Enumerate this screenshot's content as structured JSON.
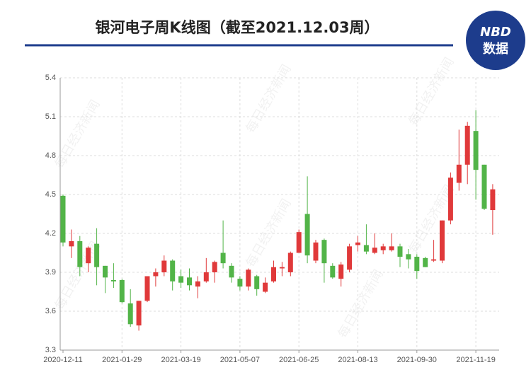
{
  "chart_data": {
    "type": "candlestick",
    "title": "银河电子周K线图（截至2021.12.03周）",
    "logo_top": "NBD",
    "logo_bottom": "数据",
    "watermark": "每日经济新闻",
    "categories": [
      "2020-12-11",
      null,
      null,
      null,
      null,
      null,
      null,
      "2021-01-29",
      null,
      null,
      null,
      null,
      null,
      null,
      "2021-03-19",
      null,
      null,
      null,
      null,
      null,
      null,
      "2021-05-07",
      null,
      null,
      null,
      null,
      null,
      null,
      "2021-06-25",
      null,
      null,
      null,
      null,
      null,
      null,
      "2021-08-13",
      null,
      null,
      null,
      null,
      null,
      null,
      "2021-09-30",
      null,
      null,
      null,
      null,
      null,
      null,
      "2021-11-19",
      null,
      null
    ],
    "open": [
      4.49,
      4.1,
      4.14,
      3.97,
      4.12,
      3.95,
      3.84,
      3.84,
      3.66,
      3.49,
      3.68,
      3.87,
      3.9,
      3.99,
      3.87,
      3.86,
      3.79,
      3.83,
      3.9,
      4.05,
      3.95,
      3.85,
      3.79,
      3.87,
      3.75,
      3.83,
      3.93,
      3.9,
      4.05,
      4.35,
      3.99,
      4.15,
      3.95,
      3.85,
      3.92,
      4.11,
      4.11,
      4.05,
      4.07,
      4.07,
      4.1,
      4.04,
      4.02,
      4.01,
      3.99,
      3.99,
      4.3,
      4.59,
      4.73,
      4.99,
      4.73,
      4.38
    ],
    "high": [
      4.5,
      4.23,
      4.18,
      4.1,
      4.24,
      3.95,
      3.97,
      3.85,
      3.77,
      3.68,
      3.87,
      3.93,
      4.03,
      4.0,
      3.92,
      3.93,
      3.87,
      4.01,
      3.99,
      4.3,
      3.97,
      3.87,
      3.93,
      3.88,
      3.86,
      3.99,
      3.98,
      4.06,
      4.23,
      4.64,
      4.15,
      4.16,
      3.97,
      3.98,
      4.12,
      4.18,
      4.27,
      4.2,
      4.12,
      4.2,
      4.12,
      4.08,
      4.04,
      4.02,
      4.15,
      4.3,
      4.67,
      5.0,
      5.06,
      5.15,
      4.73,
      4.58
    ],
    "low": [
      4.1,
      4.01,
      3.87,
      3.9,
      3.8,
      3.74,
      3.78,
      3.66,
      3.48,
      3.45,
      3.67,
      3.79,
      3.87,
      3.76,
      3.78,
      3.76,
      3.7,
      3.82,
      3.82,
      3.93,
      3.82,
      3.76,
      3.76,
      3.72,
      3.74,
      3.82,
      3.87,
      3.87,
      4.05,
      3.97,
      3.97,
      3.82,
      3.85,
      3.79,
      3.9,
      4.06,
      4.04,
      4.04,
      4.04,
      4.06,
      3.94,
      3.93,
      3.85,
      3.94,
      3.98,
      3.97,
      4.27,
      4.53,
      4.58,
      4.46,
      4.38,
      4.19
    ],
    "close": [
      4.13,
      4.14,
      3.94,
      4.09,
      3.94,
      3.86,
      3.83,
      3.67,
      3.5,
      3.68,
      3.87,
      3.9,
      3.99,
      3.83,
      3.82,
      3.8,
      3.83,
      3.9,
      3.98,
      3.97,
      3.86,
      3.79,
      3.92,
      3.77,
      3.82,
      3.94,
      3.94,
      4.05,
      4.21,
      4.03,
      4.13,
      3.97,
      3.86,
      3.96,
      4.1,
      4.13,
      4.06,
      4.09,
      4.1,
      4.1,
      4.02,
      4.0,
      3.91,
      3.94,
      4.0,
      4.3,
      4.63,
      4.73,
      5.03,
      4.69,
      4.39,
      4.54
    ],
    "up_color": "#e0393a",
    "down_color": "#52b448",
    "ylim": [
      3.3,
      5.4
    ],
    "yticks": [
      3.3,
      3.6,
      3.9,
      4.2,
      4.5,
      4.8,
      5.1,
      5.4
    ],
    "grid": true
  }
}
